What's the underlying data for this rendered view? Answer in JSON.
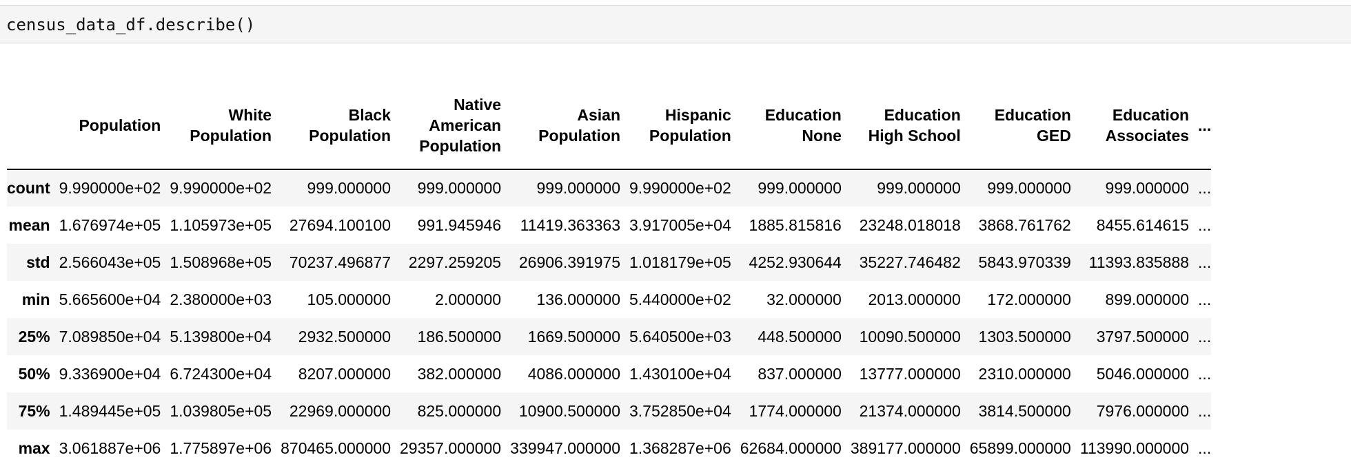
{
  "cell": {
    "code": "census_data_df.describe()"
  },
  "table": {
    "columns": [
      "Population",
      "White Population",
      "Black Population",
      "Native American Population",
      "Asian Population",
      "Hispanic Population",
      "Education None",
      "Education High School",
      "Education GED",
      "Education Associates"
    ],
    "truncation_marker": "...",
    "rows": [
      {
        "label": "count",
        "values": [
          "9.990000e+02",
          "9.990000e+02",
          "999.000000",
          "999.000000",
          "999.000000",
          "9.990000e+02",
          "999.000000",
          "999.000000",
          "999.000000",
          "999.000000"
        ]
      },
      {
        "label": "mean",
        "values": [
          "1.676974e+05",
          "1.105973e+05",
          "27694.100100",
          "991.945946",
          "11419.363363",
          "3.917005e+04",
          "1885.815816",
          "23248.018018",
          "3868.761762",
          "8455.614615"
        ]
      },
      {
        "label": "std",
        "values": [
          "2.566043e+05",
          "1.508968e+05",
          "70237.496877",
          "2297.259205",
          "26906.391975",
          "1.018179e+05",
          "4252.930644",
          "35227.746482",
          "5843.970339",
          "11393.835888"
        ]
      },
      {
        "label": "min",
        "values": [
          "5.665600e+04",
          "2.380000e+03",
          "105.000000",
          "2.000000",
          "136.000000",
          "5.440000e+02",
          "32.000000",
          "2013.000000",
          "172.000000",
          "899.000000"
        ]
      },
      {
        "label": "25%",
        "values": [
          "7.089850e+04",
          "5.139800e+04",
          "2932.500000",
          "186.500000",
          "1669.500000",
          "5.640500e+03",
          "448.500000",
          "10090.500000",
          "1303.500000",
          "3797.500000"
        ]
      },
      {
        "label": "50%",
        "values": [
          "9.336900e+04",
          "6.724300e+04",
          "8207.000000",
          "382.000000",
          "4086.000000",
          "1.430100e+04",
          "837.000000",
          "13777.000000",
          "2310.000000",
          "5046.000000"
        ]
      },
      {
        "label": "75%",
        "values": [
          "1.489445e+05",
          "1.039805e+05",
          "22969.000000",
          "825.000000",
          "10900.500000",
          "3.752850e+04",
          "1774.000000",
          "21374.000000",
          "3814.500000",
          "7976.000000"
        ]
      },
      {
        "label": "max",
        "values": [
          "3.061887e+06",
          "1.775897e+06",
          "870465.000000",
          "29357.000000",
          "339947.000000",
          "1.368287e+06",
          "62684.000000",
          "389177.000000",
          "65899.000000",
          "113990.000000"
        ]
      }
    ]
  }
}
